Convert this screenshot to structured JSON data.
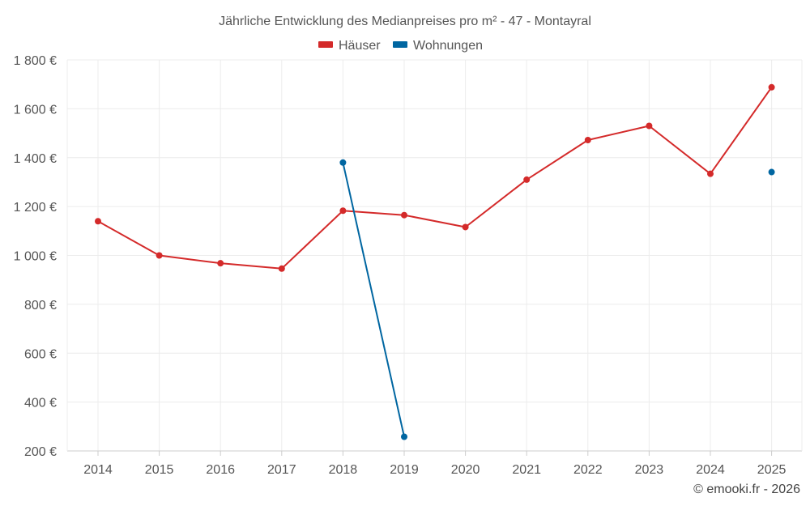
{
  "chart_data": {
    "type": "line",
    "title": "Jährliche Entwicklung des Medianpreises pro m² - 47 - Montayral",
    "categories": [
      "2014",
      "2015",
      "2016",
      "2017",
      "2018",
      "2019",
      "2020",
      "2021",
      "2022",
      "2023",
      "2024",
      "2025"
    ],
    "ylim": [
      200,
      1800
    ],
    "yticks": [
      200,
      400,
      600,
      800,
      1000,
      1200,
      1400,
      1600,
      1800
    ],
    "ytick_labels": [
      "200 €",
      "400 €",
      "600 €",
      "800 €",
      "1 000 €",
      "1 200 €",
      "1 400 €",
      "1 600 €",
      "1 800 €"
    ],
    "grid": true,
    "legend_position": "top-center",
    "series": [
      {
        "name": "Häuser",
        "color": "#d42a2a",
        "values": [
          1140,
          1000,
          968,
          946,
          1183,
          1165,
          1116,
          1310,
          1472,
          1530,
          1334,
          1688
        ]
      },
      {
        "name": "Wohnungen",
        "color": "#0066a1",
        "values": [
          null,
          null,
          null,
          null,
          1380,
          258,
          null,
          null,
          null,
          null,
          null,
          1341
        ]
      }
    ]
  },
  "credit": "© emooki.fr - 2026"
}
